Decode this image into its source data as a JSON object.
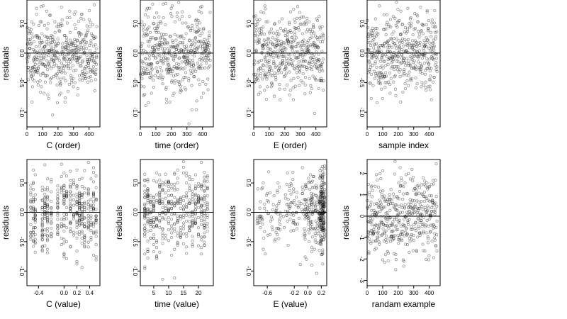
{
  "chart_data": [
    {
      "type": "scatter",
      "id": "p1",
      "xlabel": "C (order)",
      "ylabel": "residuals",
      "xlim": [
        0,
        470
      ],
      "ylim": [
        -1.25,
        0.9
      ],
      "xticks": [
        0,
        100,
        200,
        300,
        400
      ],
      "yticks": [
        -1.0,
        -0.5,
        0.0,
        0.5
      ],
      "ytick_labels": [
        "-1.0",
        "-0.5",
        "0.0",
        "0.5"
      ],
      "hline": 0,
      "n": 450,
      "seed": 11,
      "x_kind": "index",
      "sd": 0.33,
      "x": [],
      "y": []
    },
    {
      "type": "scatter",
      "id": "p2",
      "xlabel": "time (order)",
      "ylabel": "residuals",
      "xlim": [
        0,
        470
      ],
      "ylim": [
        -1.25,
        0.9
      ],
      "xticks": [
        0,
        100,
        200,
        300,
        400
      ],
      "yticks": [
        -1.0,
        -0.5,
        0.0,
        0.5
      ],
      "ytick_labels": [
        "-1.0",
        "-0.5",
        "0.0",
        "0.5"
      ],
      "hline": 0,
      "n": 450,
      "seed": 23,
      "x_kind": "index",
      "sd": 0.33,
      "x": [],
      "y": []
    },
    {
      "type": "scatter",
      "id": "p3",
      "xlabel": "E (order)",
      "ylabel": "residuals",
      "xlim": [
        0,
        470
      ],
      "ylim": [
        -1.25,
        0.9
      ],
      "xticks": [
        0,
        100,
        200,
        300,
        400
      ],
      "yticks": [
        -1.0,
        -0.5,
        0.0,
        0.5
      ],
      "ytick_labels": [
        "-1.0",
        "-0.5",
        "0.0",
        "0.5"
      ],
      "hline": 0,
      "n": 450,
      "seed": 37,
      "x_kind": "index",
      "sd": 0.33,
      "x": [],
      "y": []
    },
    {
      "type": "scatter",
      "id": "p4",
      "xlabel": "sample index",
      "ylabel": "residuals",
      "xlim": [
        0,
        470
      ],
      "ylim": [
        -1.25,
        0.9
      ],
      "xticks": [
        0,
        100,
        200,
        300,
        400
      ],
      "yticks": [
        -1.0,
        -0.5,
        0.0,
        0.5
      ],
      "ytick_labels": [
        "-1.0",
        "-0.5",
        "0.0",
        "0.5"
      ],
      "hline": 0,
      "n": 450,
      "seed": 41,
      "x_kind": "index",
      "sd": 0.33,
      "x": [],
      "y": []
    },
    {
      "type": "scatter",
      "id": "p5",
      "xlabel": "C (value)",
      "ylabel": "residuals",
      "xlim": [
        -0.58,
        0.56
      ],
      "ylim": [
        -1.25,
        0.9
      ],
      "xticks": [
        -0.4,
        0.0,
        0.2,
        0.4
      ],
      "xtick_labels": [
        "-0.4",
        "0.0",
        "0.2",
        "0.4"
      ],
      "yticks": [
        -1.0,
        -0.5,
        0.0,
        0.5
      ],
      "ytick_labels": [
        "-1.0",
        "-0.5",
        "0.0",
        "0.5"
      ],
      "hline": 0,
      "n": 450,
      "seed": 53,
      "x_kind": "discrete",
      "x_values": [
        -0.52,
        -0.48,
        -0.45,
        -0.34,
        -0.3,
        -0.26,
        -0.2,
        -0.1,
        -0.04,
        0.0,
        0.04,
        0.1,
        0.15,
        0.2,
        0.24,
        0.28,
        0.32,
        0.38,
        0.42,
        0.46,
        0.5
      ],
      "sd": 0.33,
      "x": [],
      "y": []
    },
    {
      "type": "scatter",
      "id": "p6",
      "xlabel": "time (value)",
      "ylabel": "residuals",
      "xlim": [
        0.5,
        25
      ],
      "ylim": [
        -1.25,
        0.9
      ],
      "xticks": [
        5,
        10,
        15,
        20
      ],
      "yticks": [
        -1.0,
        -0.5,
        0.0,
        0.5
      ],
      "ytick_labels": [
        "-1.0",
        "-0.5",
        "0.0",
        "0.5"
      ],
      "hline": 0,
      "n": 450,
      "seed": 67,
      "x_kind": "integer",
      "x_values": [
        2,
        3,
        4,
        5,
        6,
        7,
        8,
        9,
        10,
        11,
        12,
        13,
        14,
        15,
        16,
        17,
        18,
        19,
        20,
        21,
        22,
        23
      ],
      "sd": 0.33,
      "x": [],
      "y": []
    },
    {
      "type": "scatter",
      "id": "p7",
      "xlabel": "E (value)",
      "ylabel": "residuals",
      "xlim": [
        -0.8,
        0.28
      ],
      "ylim": [
        -1.25,
        0.9
      ],
      "xticks": [
        -0.6,
        -0.2,
        0.0,
        0.2
      ],
      "xtick_labels": [
        "-0.6",
        "-0.2",
        "0.0",
        "0.2"
      ],
      "yticks": [
        -1.0,
        -0.5,
        0.0,
        0.5
      ],
      "ytick_labels": [
        "-1.0",
        "-0.5",
        "0.0",
        "0.5"
      ],
      "hline": 0,
      "n": 450,
      "seed": 71,
      "x_kind": "skewed",
      "sd": 0.33,
      "x": [],
      "y": []
    },
    {
      "type": "scatter",
      "id": "p8",
      "xlabel": "randam example",
      "ylabel": "residuals",
      "xlim": [
        0,
        470
      ],
      "ylim": [
        -3.25,
        2.65
      ],
      "xticks": [
        0,
        100,
        200,
        300,
        400
      ],
      "yticks": [
        -3,
        -2,
        -1,
        0,
        1,
        2
      ],
      "ytick_labels": [
        "-3",
        "-2",
        "-1",
        "0",
        "1",
        "2"
      ],
      "hline": 0,
      "n": 450,
      "seed": 89,
      "x_kind": "index",
      "sd": 1.0,
      "x": [],
      "y": []
    }
  ]
}
